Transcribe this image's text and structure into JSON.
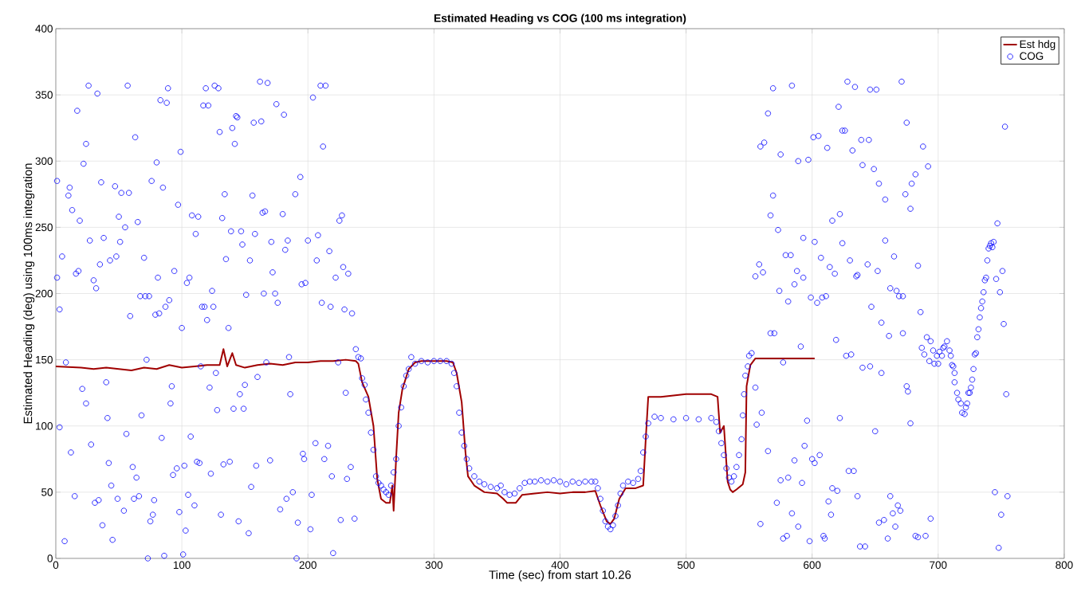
{
  "chart_data": {
    "type": "line",
    "title": "Estimated Heading vs COG (100 ms integration)",
    "xlabel": "Time (sec) from start 10.26",
    "ylabel": "Estimated Heading (deg) using 100ms integration",
    "xlim": [
      0,
      800
    ],
    "ylim": [
      0,
      400
    ],
    "xticks": [
      0,
      100,
      200,
      300,
      400,
      500,
      600,
      700,
      800
    ],
    "yticks": [
      0,
      50,
      100,
      150,
      200,
      250,
      300,
      350,
      400
    ],
    "grid": true,
    "legend": "top right",
    "series": [
      {
        "name": "Est hdg",
        "color": "#a00000",
        "marker": "none",
        "x": [
          0,
          20,
          30,
          40,
          50,
          60,
          70,
          80,
          90,
          100,
          110,
          120,
          130,
          133,
          136,
          140,
          143,
          150,
          160,
          170,
          180,
          190,
          200,
          210,
          220,
          230,
          238,
          240,
          243,
          248,
          252,
          255,
          258,
          262,
          265,
          267,
          268,
          270,
          272,
          275,
          280,
          285,
          290,
          300,
          310,
          315,
          318,
          322,
          325,
          327,
          332,
          340,
          350,
          355,
          358,
          365,
          370,
          380,
          390,
          400,
          410,
          420,
          428,
          432,
          437,
          440,
          443,
          447,
          452,
          460,
          466,
          468,
          470,
          480,
          490,
          500,
          510,
          520,
          525,
          527,
          530,
          533,
          535,
          537,
          540,
          545,
          547,
          548,
          551,
          555,
          570,
          580,
          590,
          600,
          602
        ],
        "values": [
          145,
          144,
          143,
          144,
          143,
          142,
          144,
          143,
          146,
          144,
          145,
          146,
          146,
          158,
          145,
          155,
          146,
          144,
          146,
          147,
          146,
          148,
          148,
          149,
          149,
          150,
          149,
          147,
          133,
          122,
          100,
          60,
          45,
          42,
          42,
          55,
          36,
          76,
          110,
          128,
          143,
          148,
          149,
          149,
          149,
          148,
          140,
          118,
          80,
          62,
          55,
          50,
          49,
          45,
          42,
          42,
          48,
          49,
          50,
          49,
          50,
          50,
          51,
          40,
          28,
          26,
          30,
          45,
          53,
          53,
          55,
          90,
          122,
          122,
          123,
          124,
          124,
          124,
          122,
          95,
          100,
          58,
          52,
          50,
          52,
          56,
          65,
          130,
          146,
          151,
          151,
          151,
          151,
          151,
          151
        ]
      },
      {
        "name": "COG",
        "type": "scatter",
        "color": "#0000ff",
        "marker": "circle",
        "x": [
          1,
          1,
          3,
          3,
          5,
          7,
          8,
          10,
          11,
          12,
          13,
          15,
          16,
          17,
          18,
          19,
          21,
          22,
          24,
          24,
          26,
          27,
          28,
          30,
          31,
          32,
          33,
          34,
          35,
          36,
          37,
          38,
          40,
          41,
          42,
          43,
          44,
          45,
          47,
          48,
          49,
          50,
          51,
          52,
          54,
          55,
          56,
          57,
          58,
          59,
          61,
          62,
          63,
          64,
          65,
          66,
          67,
          68,
          70,
          71,
          72,
          73,
          74,
          75,
          76,
          77,
          78,
          79,
          80,
          81,
          82,
          83,
          84,
          85,
          86,
          87,
          88,
          89,
          90,
          91,
          92,
          93,
          94,
          96,
          97,
          98,
          99,
          100,
          101,
          102,
          103,
          104,
          105,
          106,
          107,
          108,
          110,
          111,
          112,
          113,
          114,
          115,
          116,
          117,
          118,
          119,
          120,
          121,
          122,
          123,
          124,
          125,
          126,
          127,
          128,
          129,
          130,
          131,
          132,
          133,
          134,
          135,
          137,
          138,
          139,
          140,
          141,
          142,
          143,
          144,
          145,
          146,
          147,
          148,
          149,
          150,
          151,
          153,
          154,
          155,
          156,
          157,
          158,
          159,
          160,
          162,
          163,
          164,
          165,
          166,
          167,
          168,
          170,
          171,
          172,
          174,
          175,
          176,
          178,
          180,
          181,
          182,
          183,
          184,
          185,
          186,
          188,
          190,
          191,
          192,
          194,
          195,
          196,
          197,
          198,
          200,
          202,
          203,
          204,
          206,
          207,
          208,
          210,
          211,
          212,
          213,
          214,
          216,
          217,
          218,
          219,
          220,
          222,
          224,
          225,
          226,
          227,
          228,
          229,
          230,
          231,
          232,
          234,
          235,
          237,
          238,
          240,
          242,
          243,
          245,
          246,
          248,
          250,
          252,
          254,
          256,
          258,
          260,
          262,
          264,
          266,
          268,
          270,
          272,
          274,
          276,
          278,
          280,
          282,
          285,
          290,
          295,
          300,
          305,
          310,
          314,
          316,
          318,
          320,
          322,
          324,
          326,
          328,
          332,
          336,
          340,
          345,
          350,
          353,
          356,
          360,
          364,
          368,
          372,
          376,
          380,
          385,
          390,
          395,
          400,
          405,
          410,
          415,
          420,
          425,
          428,
          430,
          432,
          434,
          436,
          438,
          440,
          442,
          444,
          446,
          448,
          450,
          454,
          458,
          462,
          464,
          466,
          468,
          470,
          475,
          480,
          490,
          500,
          510,
          520,
          524,
          526,
          528,
          530,
          532,
          534,
          536,
          538,
          540,
          542,
          544,
          545,
          546,
          547,
          549,
          550,
          552,
          569,
          584,
          565,
          559,
          562,
          575,
          589,
          597,
          569,
          567,
          573,
          558,
          555,
          561,
          579,
          583,
          593,
          588,
          593,
          586,
          574,
          581,
          599,
          604,
          608,
          611,
          602,
          607,
          614,
          618,
          616,
          622,
          624,
          630,
          635,
          636,
          621,
          624,
          626,
          601,
          605,
          612,
          632,
          639,
          645,
          640,
          649,
          653,
          658,
          628,
          634,
          646,
          651,
          671,
          675,
          688,
          692,
          682,
          679,
          674,
          678,
          658,
          665,
          644,
          652,
          662,
          667,
          669,
          672,
          647,
          655,
          661,
          672,
          686,
          684,
          619,
          591,
          577,
          567,
          570,
          627,
          631,
          640,
          646,
          655,
          675,
          676,
          555,
          560,
          556,
          596,
          622,
          650,
          678,
          565,
          594,
          586,
          600,
          602,
          606,
          629,
          633,
          575,
          581,
          592,
          616,
          620,
          636,
          662,
          572,
          584,
          613,
          615,
          668,
          670,
          664,
          653,
          657,
          666,
          694,
          559,
          589,
          577,
          580,
          598,
          609,
          610,
          638,
          642,
          660,
          682,
          684,
          690,
          691,
          694,
          687,
          689,
          696,
          693,
          697,
          700,
          699,
          701,
          703,
          704,
          705,
          707,
          709,
          710,
          711,
          712,
          713,
          713,
          715,
          716,
          718,
          719,
          721,
          722,
          723,
          724,
          725,
          726,
          727,
          728,
          729,
          730,
          731,
          732,
          733,
          734,
          735,
          736,
          737,
          738,
          739,
          740,
          741,
          742,
          743,
          744,
          747,
          746,
          749,
          751,
          752,
          753,
          754,
          745,
          750,
          755,
          748
        ],
        "values": [
          285,
          212,
          99,
          188,
          228,
          13,
          148,
          274,
          280,
          80,
          263,
          47,
          215,
          338,
          217,
          255,
          128,
          298,
          313,
          117,
          357,
          240,
          86,
          210,
          42,
          204,
          351,
          44,
          222,
          284,
          25,
          242,
          133,
          106,
          72,
          225,
          55,
          14,
          281,
          228,
          45,
          258,
          239,
          276,
          36,
          250,
          94,
          357,
          276,
          183,
          69,
          45,
          318,
          61,
          254,
          47,
          198,
          108,
          227,
          198,
          150,
          0,
          198,
          28,
          285,
          33,
          44,
          184,
          299,
          212,
          185,
          346,
          91,
          280,
          2,
          190,
          344,
          355,
          195,
          117,
          130,
          63,
          217,
          68,
          267,
          35,
          307,
          174,
          3,
          70,
          21,
          208,
          48,
          212,
          92,
          259,
          40,
          245,
          73,
          258,
          72,
          145,
          190,
          342,
          190,
          355,
          180,
          342,
          129,
          64,
          202,
          190,
          357,
          140,
          112,
          355,
          322,
          33,
          257,
          71,
          275,
          226,
          174,
          73,
          247,
          325,
          113,
          313,
          334,
          333,
          28,
          124,
          247,
          237,
          113,
          131,
          199,
          19,
          225,
          54,
          274,
          329,
          245,
          70,
          137,
          360,
          330,
          261,
          200,
          262,
          148,
          359,
          74,
          239,
          216,
          200,
          343,
          193,
          37,
          260,
          335,
          233,
          45,
          240,
          152,
          124,
          50,
          275,
          0,
          27,
          288,
          207,
          79,
          75,
          208,
          240,
          22,
          48,
          348,
          87,
          225,
          244,
          357,
          193,
          311,
          75,
          357,
          85,
          232,
          190,
          62,
          4,
          212,
          148,
          255,
          29,
          259,
          220,
          188,
          125,
          60,
          215,
          69,
          185,
          30,
          158,
          152,
          151,
          136,
          131,
          120,
          110,
          95,
          82,
          62,
          57,
          55,
          52,
          50,
          48,
          55,
          65,
          75,
          100,
          114,
          130,
          138,
          143,
          152,
          147,
          149,
          148,
          149,
          149,
          149,
          147,
          140,
          130,
          110,
          95,
          85,
          75,
          68,
          62,
          58,
          56,
          54,
          53,
          55,
          50,
          48,
          49,
          53,
          57,
          58,
          58,
          59,
          58,
          59,
          58,
          56,
          58,
          57,
          58,
          58,
          58,
          53,
          45,
          36,
          28,
          24,
          22,
          25,
          32,
          40,
          49,
          55,
          58,
          57,
          60,
          66,
          80,
          92,
          102,
          107,
          106,
          105,
          106,
          105,
          106,
          103,
          96,
          87,
          78,
          68,
          61,
          58,
          62,
          69,
          78,
          90,
          108,
          124,
          138,
          145,
          153,
          155,
          355,
          357,
          336,
          311,
          314,
          305,
          300,
          301,
          274,
          259,
          248,
          222,
          213,
          216,
          229,
          229,
          242,
          217,
          212,
          207,
          202,
          194,
          197,
          193,
          197,
          198,
          239,
          227,
          220,
          215,
          255,
          260,
          238,
          225,
          213,
          214,
          341,
          323,
          323,
          318,
          319,
          310,
          308,
          316,
          316,
          297,
          294,
          283,
          271,
          360,
          356,
          354,
          354,
          360,
          329,
          311,
          296,
          290,
          283,
          275,
          264,
          240,
          228,
          222,
          217,
          204,
          202,
          198,
          198,
          190,
          178,
          168,
          170,
          186,
          221,
          165,
          160,
          148,
          170,
          170,
          153,
          154,
          144,
          145,
          140,
          130,
          126,
          129,
          110,
          101,
          104,
          106,
          96,
          102,
          81,
          85,
          74,
          75,
          72,
          78,
          66,
          66,
          59,
          61,
          57,
          53,
          51,
          47,
          47,
          42,
          34,
          43,
          33,
          40,
          36,
          34,
          27,
          29,
          24,
          30,
          26,
          24,
          15,
          17,
          13,
          17,
          15,
          9,
          9,
          15,
          17,
          16,
          17,
          167,
          164,
          159,
          154,
          157,
          149,
          147,
          147,
          153,
          156,
          153,
          159,
          160,
          164,
          157,
          153,
          146,
          145,
          140,
          133,
          125,
          120,
          117,
          110,
          109,
          114,
          117,
          125,
          125,
          129,
          135,
          143,
          154,
          155,
          167,
          173,
          182,
          189,
          194,
          201,
          210,
          212,
          225,
          234,
          236,
          238,
          235,
          239,
          253,
          211,
          201,
          217,
          177,
          326,
          124,
          50,
          33,
          47,
          8
        ]
      }
    ]
  }
}
